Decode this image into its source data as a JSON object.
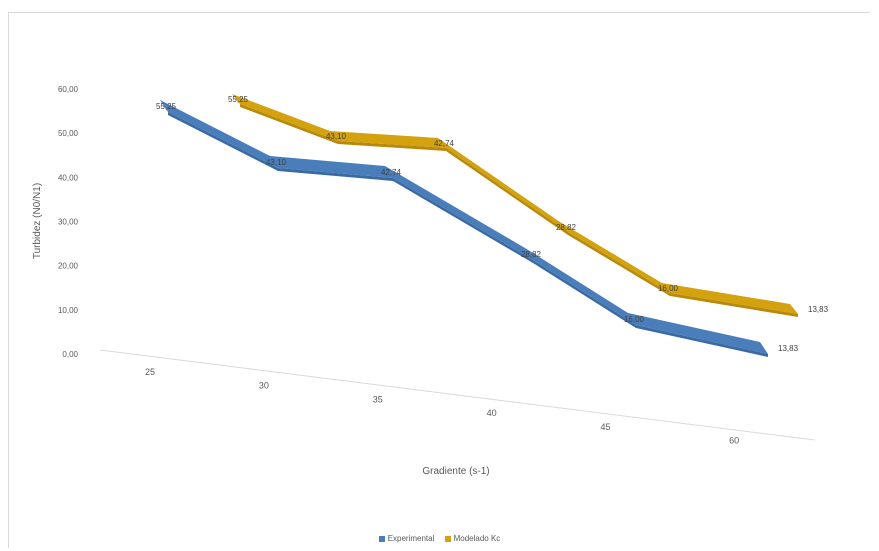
{
  "chart_data": {
    "type": "line",
    "style": "3d-ribbon",
    "title": "",
    "xlabel": "Gradiente (s-1)",
    "ylabel": "Turbidez (N0/N1)",
    "categories": [
      "25",
      "30",
      "35",
      "40",
      "45",
      "60"
    ],
    "y_ticks": [
      "0,00",
      "10,00",
      "20,00",
      "30,00",
      "40,00",
      "50,00",
      "60,00"
    ],
    "ylim": [
      0,
      60
    ],
    "grid": false,
    "legend_position": "bottom",
    "series": [
      {
        "name": "Experimental",
        "color": "#4a7ebb",
        "values": [
          55.25,
          43.1,
          42.74,
          28.82,
          16.0,
          13.83
        ],
        "labels": [
          "55,25",
          "43,10",
          "42,74",
          "28,82",
          "16,00",
          "13,83"
        ]
      },
      {
        "name": "Modelado Kc",
        "color": "#d4a20e",
        "values": [
          55.25,
          43.1,
          42.74,
          28.82,
          16.0,
          13.83
        ],
        "labels": [
          "55,25",
          "43,10",
          "42,74",
          "28,82",
          "16,00",
          "13,83"
        ]
      }
    ]
  }
}
